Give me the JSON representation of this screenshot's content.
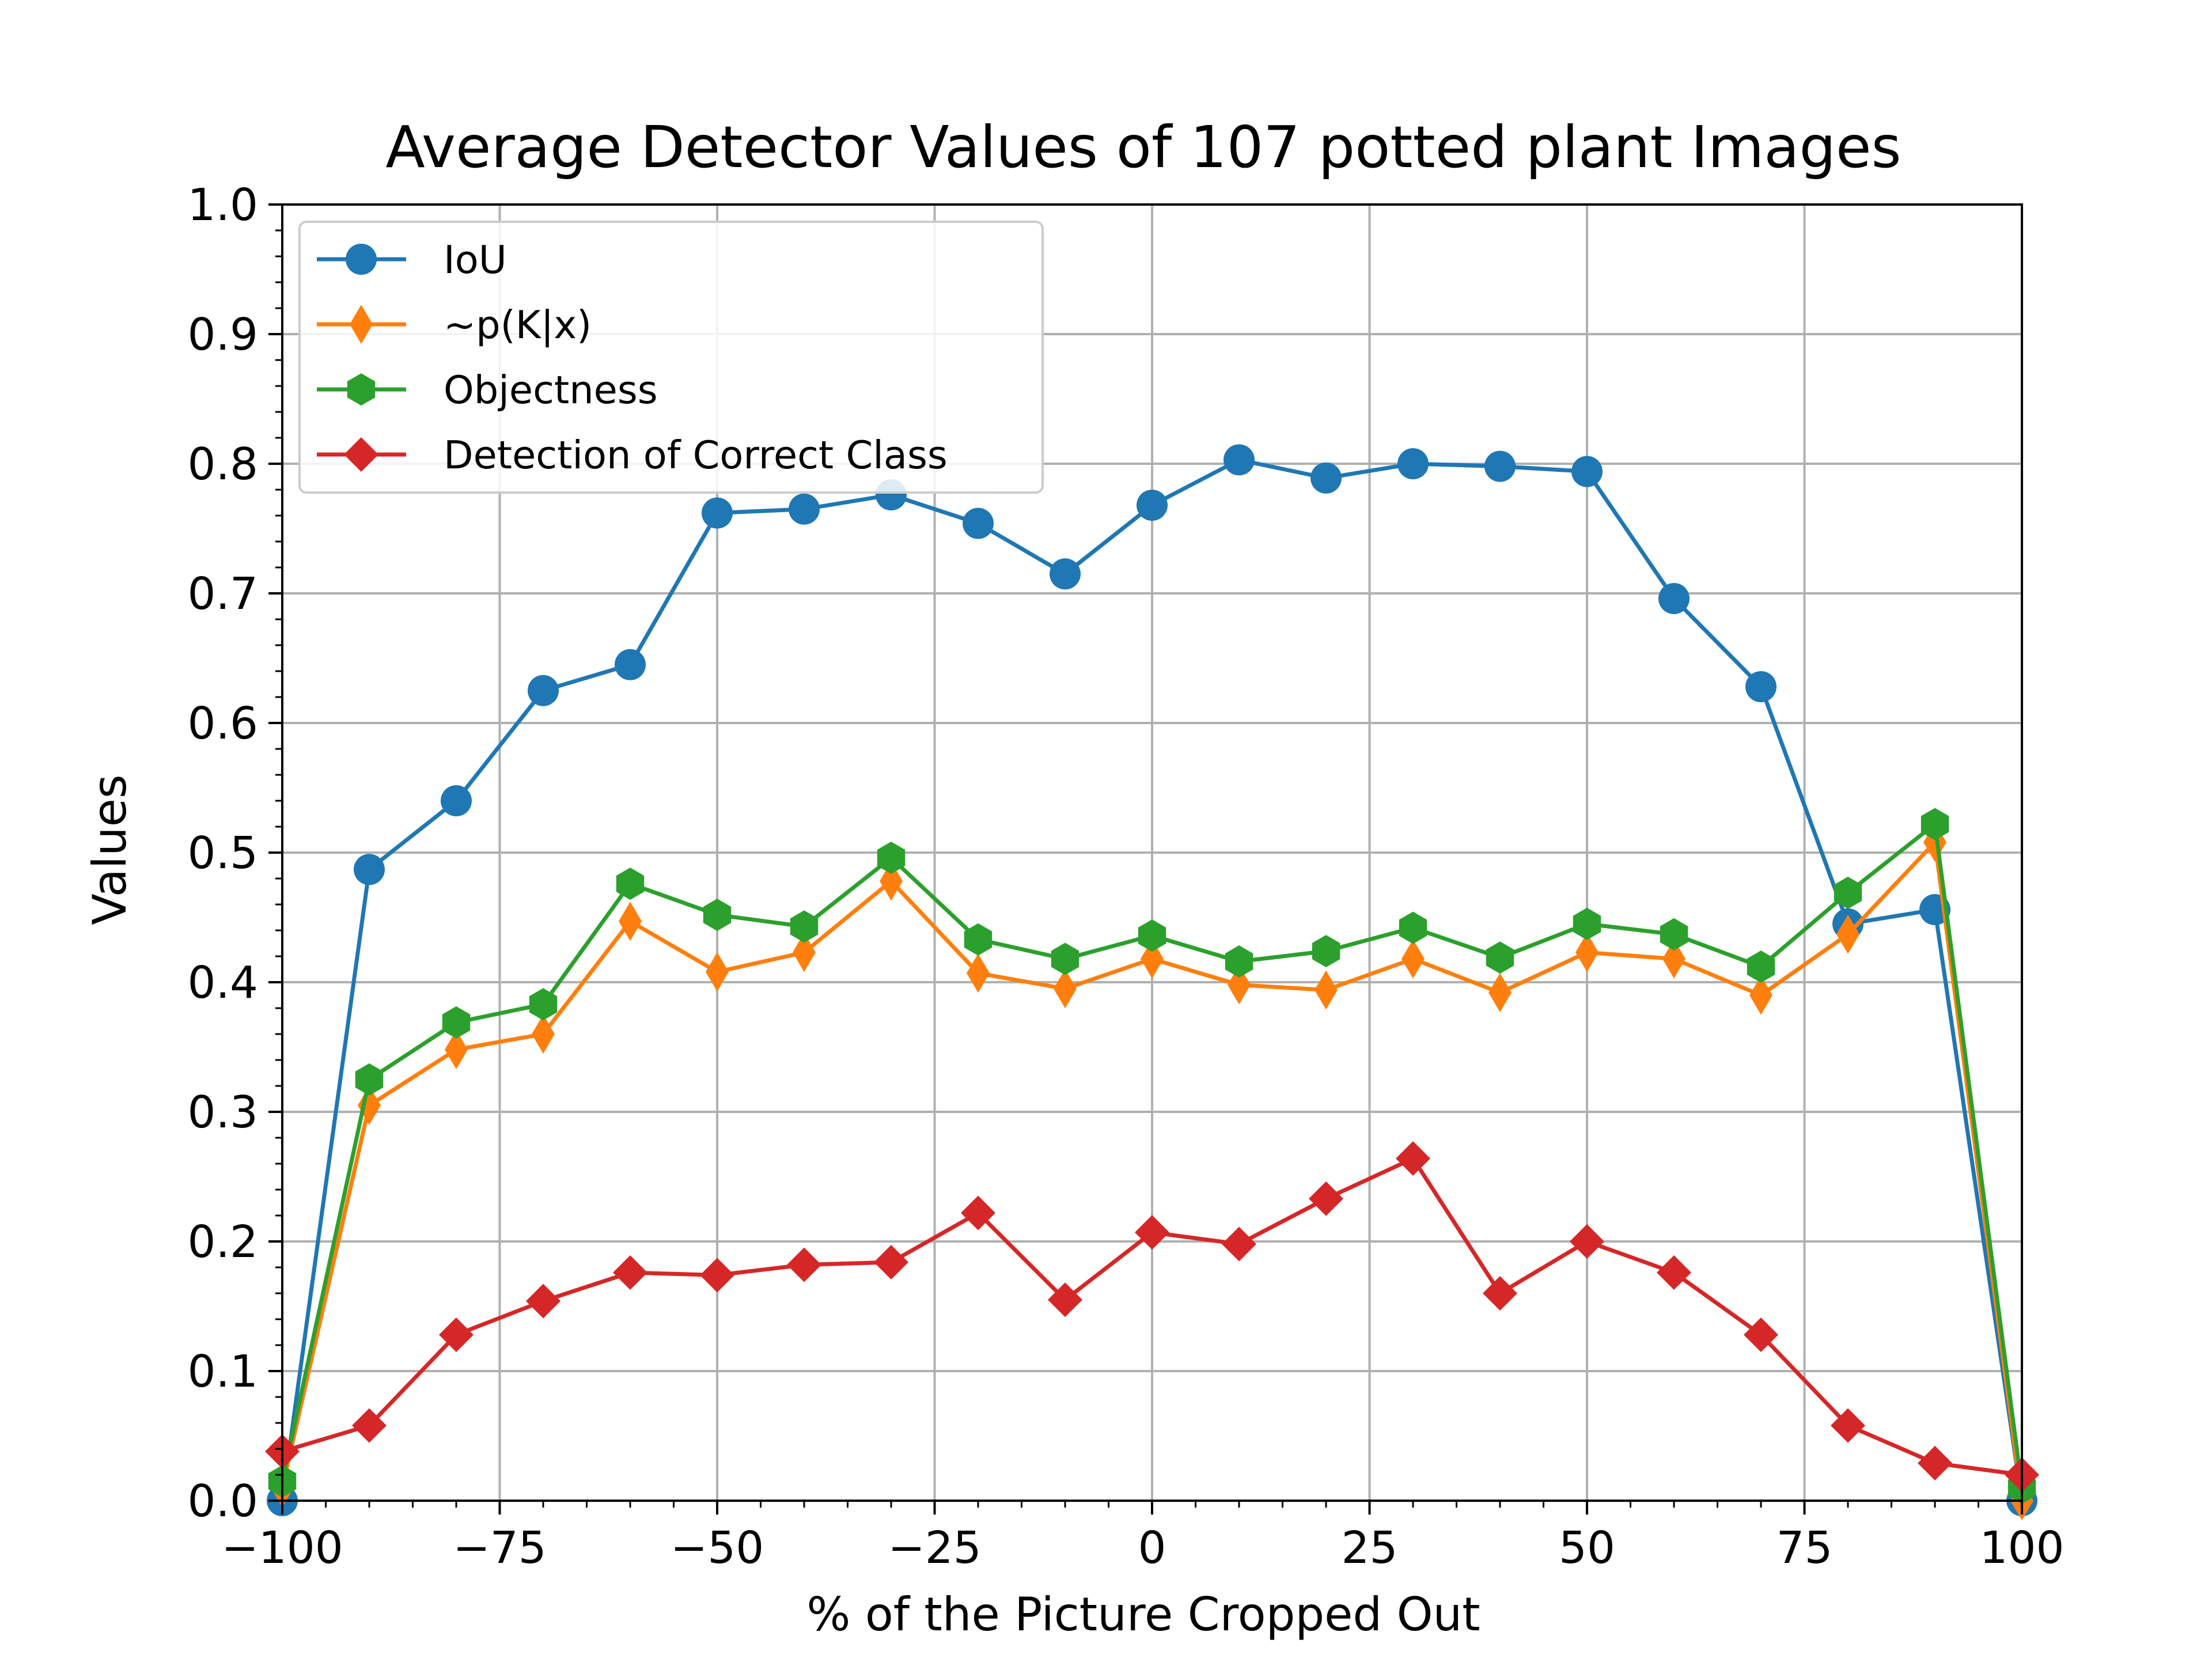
{
  "chart_data": {
    "type": "line",
    "title": "Average Detector Values of 107 potted plant Images",
    "xlabel": "% of the Picture Cropped Out",
    "ylabel": "Values",
    "xlim": [
      -100,
      100
    ],
    "ylim": [
      0,
      1
    ],
    "grid": true,
    "legend_position": "top-left",
    "x": [
      -100,
      -90,
      -80,
      -70,
      -60,
      -50,
      -40,
      -30,
      -20,
      -10,
      0,
      10,
      20,
      30,
      40,
      50,
      60,
      70,
      80,
      90,
      100
    ],
    "xticks": [
      "−100",
      "−75",
      "−50",
      "−25",
      "0",
      "25",
      "50",
      "75",
      "100"
    ],
    "xtick_values": [
      -100,
      -75,
      -50,
      -25,
      0,
      25,
      50,
      75,
      100
    ],
    "yticks": [
      "0.0",
      "0.1",
      "0.2",
      "0.3",
      "0.4",
      "0.5",
      "0.6",
      "0.7",
      "0.8",
      "0.9",
      "1.0"
    ],
    "ytick_values": [
      0,
      0.1,
      0.2,
      0.3,
      0.4,
      0.5,
      0.6,
      0.7,
      0.8,
      0.9,
      1.0
    ],
    "series": [
      {
        "name": "IoU",
        "color": "#1f77b4",
        "marker": "circle",
        "values": [
          0.0,
          0.487,
          0.54,
          0.625,
          0.645,
          0.762,
          0.765,
          0.776,
          0.754,
          0.715,
          0.768,
          0.803,
          0.789,
          0.8,
          0.798,
          0.794,
          0.696,
          0.628,
          0.445,
          0.456,
          0.0
        ]
      },
      {
        "name": "~p(K|x)",
        "color": "#ff7f0e",
        "marker": "thin-diamond",
        "values": [
          0.01,
          0.305,
          0.348,
          0.36,
          0.447,
          0.408,
          0.423,
          0.478,
          0.407,
          0.395,
          0.418,
          0.398,
          0.394,
          0.418,
          0.392,
          0.423,
          0.418,
          0.39,
          0.437,
          0.508,
          0.0
        ]
      },
      {
        "name": "Objectness",
        "color": "#2ca02c",
        "marker": "hexagon",
        "values": [
          0.015,
          0.325,
          0.369,
          0.383,
          0.476,
          0.452,
          0.443,
          0.496,
          0.433,
          0.418,
          0.436,
          0.416,
          0.424,
          0.442,
          0.419,
          0.445,
          0.437,
          0.412,
          0.469,
          0.522,
          0.01
        ]
      },
      {
        "name": "Detection of Correct Class",
        "color": "#d62728",
        "marker": "diamond",
        "values": [
          0.038,
          0.058,
          0.128,
          0.154,
          0.176,
          0.174,
          0.182,
          0.184,
          0.222,
          0.155,
          0.207,
          0.198,
          0.233,
          0.264,
          0.16,
          0.2,
          0.176,
          0.128,
          0.058,
          0.029,
          0.02
        ]
      }
    ]
  }
}
